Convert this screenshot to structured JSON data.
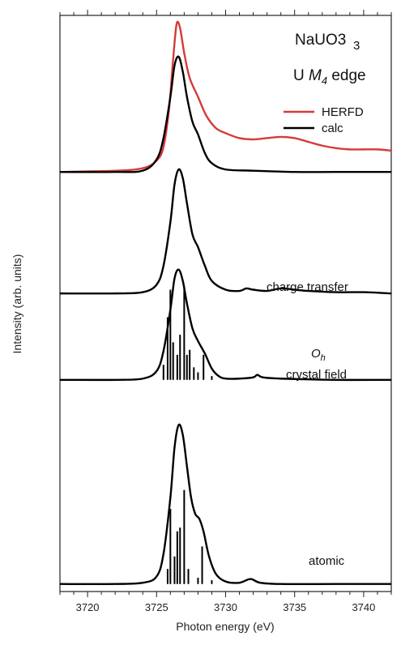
{
  "chart_data": {
    "type": "line",
    "title": "NaUO3",
    "title_sub": "3",
    "subtitle_prefix": "U ",
    "subtitle_italic": "M",
    "subtitle_italic_sub": "4",
    "subtitle_suffix": " edge",
    "xlabel": "Photon energy (eV)",
    "ylabel": "Intensity (arb. units)",
    "xlim": [
      3718,
      3742
    ],
    "ylim": [
      0,
      4.6
    ],
    "x_ticks": [
      3720,
      3725,
      3730,
      3735,
      3740
    ],
    "x_tick_labels": [
      "3720",
      "3725",
      "3730",
      "3735",
      "3740"
    ],
    "legend": {
      "position": "top-right",
      "entries": [
        {
          "name": "HERFD",
          "color": "#d63a3a"
        },
        {
          "name": "calc",
          "color": "#000000"
        }
      ]
    },
    "series": [
      {
        "name": "HERFD",
        "color": "#d63a3a",
        "baseline": 3.35,
        "x": [
          3718,
          3722,
          3724,
          3725,
          3725.5,
          3725.9,
          3726.2,
          3726.45,
          3726.7,
          3727,
          3727.4,
          3728,
          3728.6,
          3729.3,
          3730,
          3731,
          3732,
          3733,
          3734,
          3735,
          3736,
          3737,
          3738,
          3739,
          3740,
          3741,
          3742
        ],
        "y": [
          3.35,
          3.36,
          3.38,
          3.44,
          3.55,
          3.85,
          4.25,
          4.53,
          4.5,
          4.3,
          4.1,
          3.95,
          3.8,
          3.7,
          3.66,
          3.62,
          3.61,
          3.62,
          3.63,
          3.62,
          3.59,
          3.56,
          3.54,
          3.53,
          3.53,
          3.53,
          3.52
        ]
      },
      {
        "name": "charge transfer",
        "color": "#000000",
        "baseline": 2.38,
        "x": [
          3718,
          3722,
          3724,
          3725,
          3725.5,
          3726,
          3726.3,
          3726.6,
          3726.9,
          3727.2,
          3727.6,
          3728,
          3728.5,
          3729,
          3730,
          3731,
          3731.5,
          3732,
          3733,
          3734,
          3735,
          3736,
          3738,
          3740,
          3742
        ],
        "y": [
          2.38,
          2.38,
          2.39,
          2.45,
          2.6,
          2.95,
          3.25,
          3.37,
          3.3,
          3.1,
          2.85,
          2.75,
          2.6,
          2.48,
          2.41,
          2.4,
          2.42,
          2.41,
          2.4,
          2.42,
          2.41,
          2.4,
          2.39,
          2.39,
          2.38
        ]
      },
      {
        "name": "calc",
        "color": "#000000",
        "baseline": 2.38,
        "x": [
          3718,
          3722,
          3724,
          3725,
          3725.5,
          3726,
          3726.3,
          3726.6,
          3726.9,
          3727.2,
          3727.6,
          3728,
          3728.5,
          3729,
          3730,
          3732,
          3735,
          3738,
          3742
        ],
        "y": [
          3.35,
          3.35,
          3.36,
          3.45,
          3.62,
          3.95,
          4.2,
          4.27,
          4.15,
          3.95,
          3.75,
          3.65,
          3.5,
          3.42,
          3.37,
          3.36,
          3.35,
          3.35,
          3.35
        ]
      },
      {
        "name": "Oh crystal field",
        "color": "#000000",
        "baseline": 1.69,
        "x": [
          3718,
          3722,
          3724,
          3725,
          3725.5,
          3726,
          3726.3,
          3726.6,
          3726.9,
          3727.2,
          3727.6,
          3728,
          3728.5,
          3729,
          3729.5,
          3730,
          3731,
          3732,
          3732.3,
          3732.7,
          3734,
          3738,
          3742
        ],
        "y": [
          1.69,
          1.69,
          1.7,
          1.76,
          1.92,
          2.25,
          2.5,
          2.57,
          2.48,
          2.3,
          2.1,
          2.0,
          1.9,
          1.78,
          1.72,
          1.7,
          1.7,
          1.71,
          1.73,
          1.71,
          1.7,
          1.69,
          1.69
        ],
        "sticks": {
          "x": [
            3725.5,
            3725.8,
            3726.0,
            3726.2,
            3726.5,
            3726.7,
            3727.0,
            3727.2,
            3727.4,
            3727.7,
            3728.0,
            3728.4,
            3729.0
          ],
          "h": [
            0.12,
            0.5,
            0.72,
            0.3,
            0.2,
            0.36,
            0.75,
            0.2,
            0.24,
            0.1,
            0.06,
            0.2,
            0.03
          ]
        }
      },
      {
        "name": "atomic",
        "color": "#000000",
        "baseline": 0.06,
        "x": [
          3718,
          3722,
          3724,
          3725,
          3725.5,
          3726,
          3726.3,
          3726.6,
          3726.9,
          3727.2,
          3727.5,
          3727.8,
          3728.1,
          3728.4,
          3728.8,
          3729.3,
          3730,
          3731,
          3731.8,
          3732.5,
          3734,
          3738,
          3742
        ],
        "y": [
          0.06,
          0.06,
          0.07,
          0.12,
          0.3,
          0.75,
          1.15,
          1.33,
          1.25,
          1.0,
          0.75,
          0.62,
          0.58,
          0.48,
          0.28,
          0.14,
          0.08,
          0.07,
          0.1,
          0.07,
          0.06,
          0.06,
          0.06
        ],
        "sticks": {
          "x": [
            3725.8,
            3726.0,
            3726.3,
            3726.5,
            3726.7,
            3727.0,
            3727.3,
            3728.0,
            3728.3,
            3729.0
          ],
          "h": [
            0.12,
            0.6,
            0.22,
            0.42,
            0.45,
            0.75,
            0.12,
            0.05,
            0.3,
            0.03
          ]
        }
      }
    ],
    "annotations": [
      {
        "id": "charge",
        "text": "charge transfer"
      },
      {
        "id": "oh",
        "text": "O",
        "sub": "h"
      },
      {
        "id": "crystal",
        "text": "crystal field"
      },
      {
        "id": "atomic",
        "text": "atomic"
      }
    ]
  }
}
